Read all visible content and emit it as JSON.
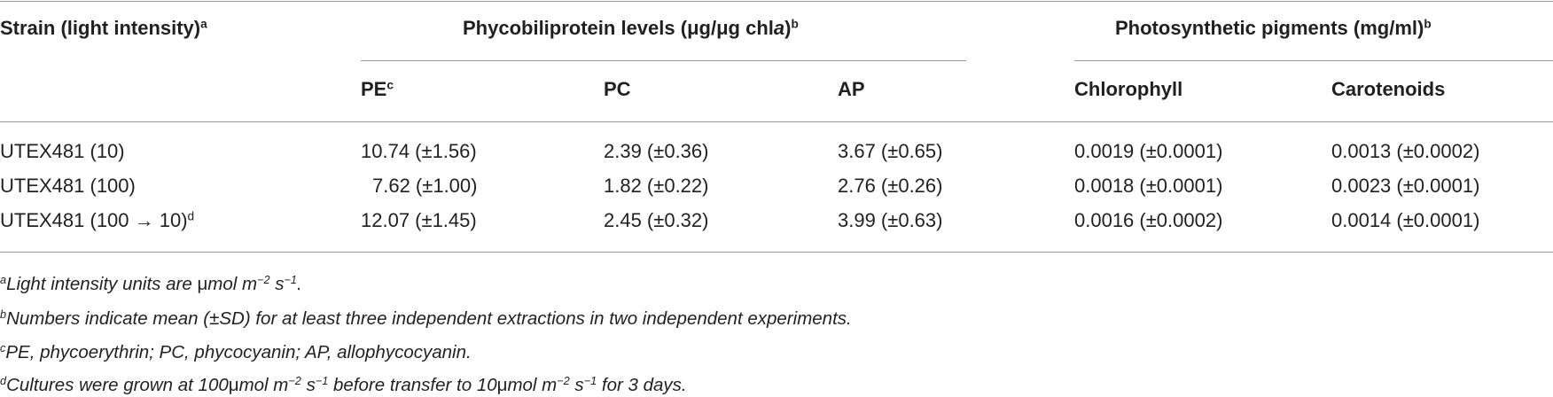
{
  "table": {
    "headers": {
      "strain": "Strain (light intensity)",
      "strain_mark": "a",
      "phyco_group": "Phycobiliprotein levels (μg/μg chl",
      "phyco_group_italic": "a",
      "phyco_group_close": ")",
      "phyco_group_mark": "b",
      "pigment_group": "Photosynthetic pigments (mg/ml)",
      "pigment_group_mark": "b",
      "pe": "PE",
      "pe_mark": "c",
      "pc": "PC",
      "ap": "AP",
      "chlorophyll": "Chlorophyll",
      "carotenoids": "Carotenoids"
    },
    "rows": [
      {
        "strain": "UTEX481 (10)",
        "strain_mark": "",
        "pe": "10.74 (±1.56)",
        "pc": "2.39 (±0.36)",
        "ap": "3.67 (±0.65)",
        "chlorophyll": "0.0019 (±0.0001)",
        "carotenoids": "0.0013 (±0.0002)"
      },
      {
        "strain": "UTEX481 (100)",
        "strain_mark": "",
        "pe": "7.62 (±1.00)",
        "pc": "1.82 (±0.22)",
        "ap": "2.76 (±0.26)",
        "chlorophyll": "0.0018 (±0.0001)",
        "carotenoids": "0.0023 (±0.0001)"
      },
      {
        "strain": "UTEX481 (100 → 10)",
        "strain_mark": "d",
        "pe": "12.07 (±1.45)",
        "pc": "2.45 (±0.32)",
        "ap": "3.99 (±0.63)",
        "chlorophyll": "0.0016 (±0.0002)",
        "carotenoids": "0.0014 (±0.0001)"
      }
    ]
  },
  "footnotes": {
    "a": {
      "mark": "a",
      "text_1": "Light intensity units are ",
      "mu": "μ",
      "text_2": "mol m",
      "exp_1": "−2",
      "text_3": " s",
      "exp_2": "−1",
      "text_4": "."
    },
    "b": {
      "mark": "b",
      "text": "Numbers indicate mean (±SD) for at least three independent extractions in two independent experiments."
    },
    "c": {
      "mark": "c",
      "text": "PE, phycoerythrin; PC, phycocyanin; AP, allophycocyanin."
    },
    "d": {
      "mark": "d",
      "text_1": "Cultures were grown at 100",
      "mu_1": "μ",
      "text_2": "mol m",
      "exp_1": "−2",
      "text_3": " s",
      "exp_2": "−1",
      "text_4": " before transfer to 10",
      "mu_2": "μ",
      "text_5": "mol m",
      "exp_3": "−2",
      "text_6": " s",
      "exp_4": "−1",
      "text_7": " for 3 days."
    }
  }
}
